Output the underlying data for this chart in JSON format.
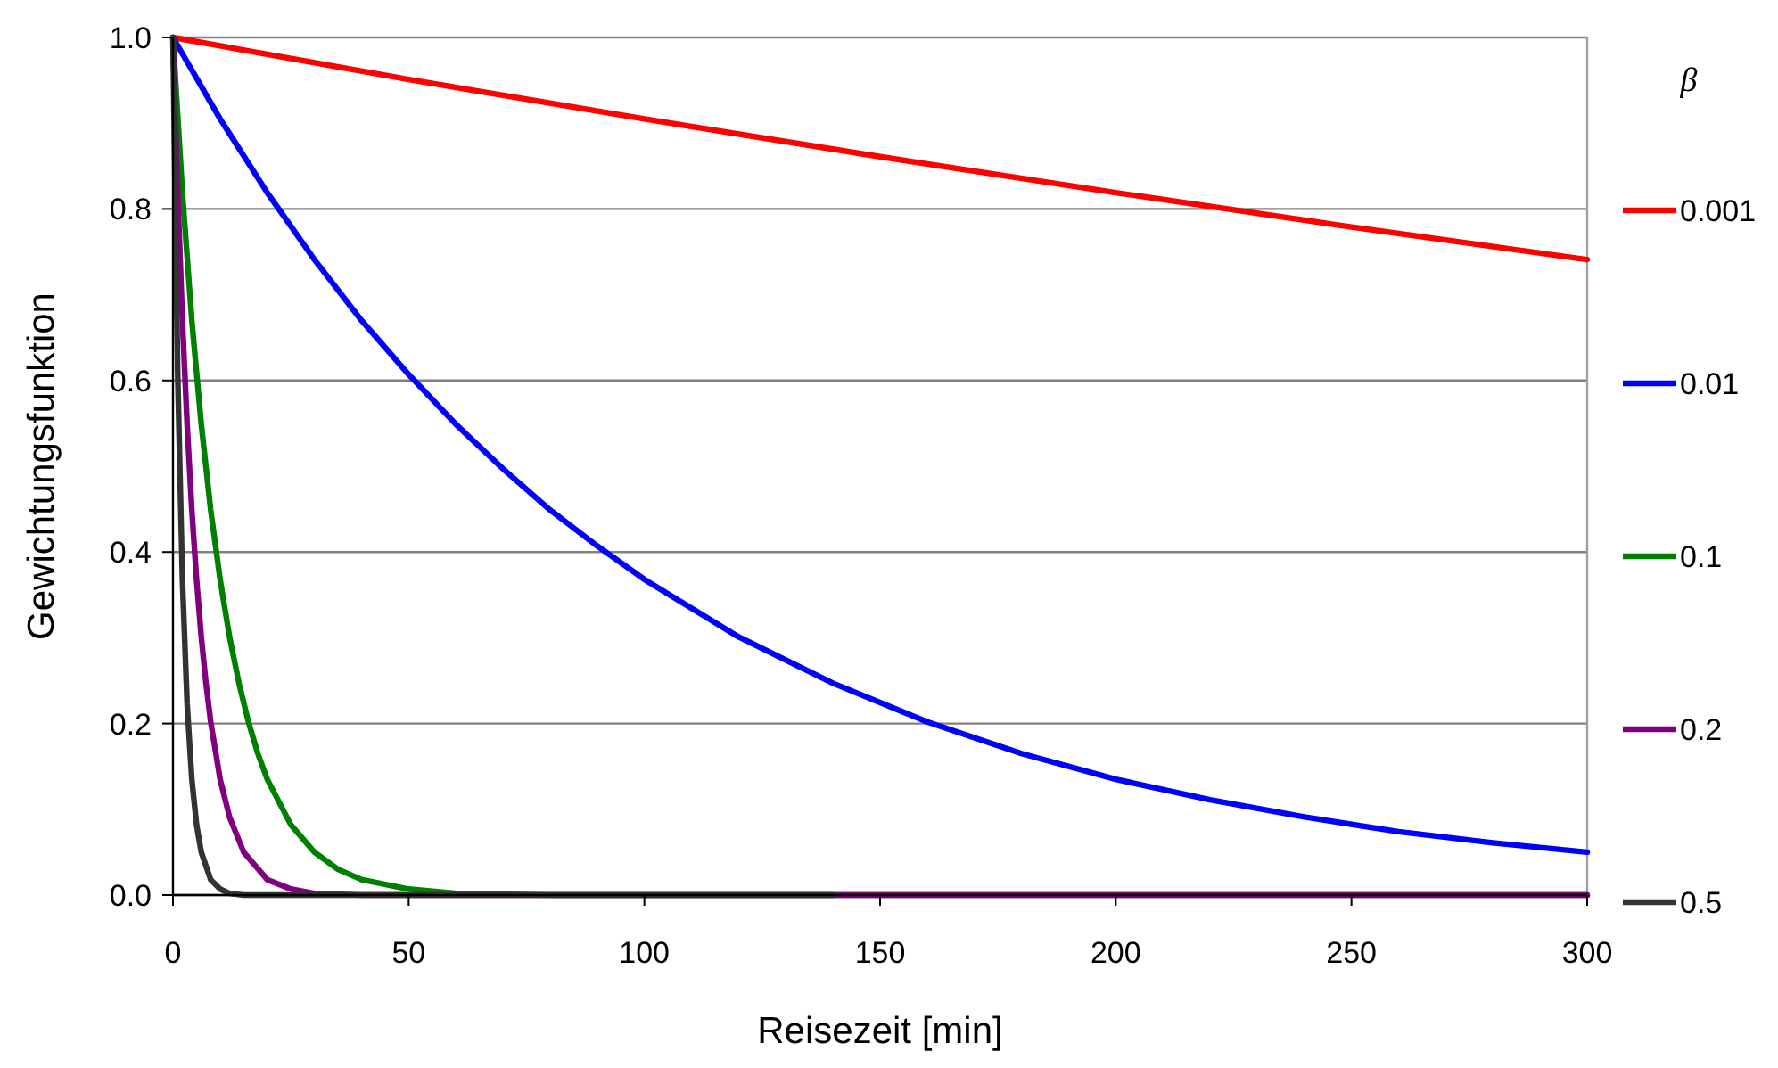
{
  "chart_data": {
    "type": "line",
    "xlabel": "Reisezeit [min]",
    "ylabel": "Gewichtungsfunktion",
    "legend_title": "β",
    "legend": "right",
    "grid": "y",
    "line_style": "solid",
    "marker": "none",
    "xlim": [
      0,
      300
    ],
    "xticks": [
      0,
      50,
      100,
      150,
      200,
      250,
      300
    ],
    "ylim": [
      0,
      1
    ],
    "yticks": [
      {
        "value": 0,
        "label": "0.0"
      },
      {
        "value": 0.2,
        "label": "0.2"
      },
      {
        "value": 0.4,
        "label": "0.4"
      },
      {
        "value": 0.6,
        "label": "0.6"
      },
      {
        "value": 0.8,
        "label": "0.8"
      },
      {
        "value": 1,
        "label": "1.0"
      }
    ],
    "series": [
      {
        "name": "0.001",
        "color": "#ff0000",
        "x": [
          0,
          50,
          100,
          150,
          200,
          250,
          300
        ],
        "values": [
          1,
          0.951,
          0.905,
          0.861,
          0.819,
          0.779,
          0.741
        ]
      },
      {
        "name": "0.01",
        "color": "#0000ff",
        "x": [
          0,
          10,
          20,
          30,
          40,
          50,
          60,
          70,
          80,
          90,
          100,
          120,
          140,
          160,
          180,
          200,
          220,
          240,
          260,
          280,
          300
        ],
        "values": [
          1,
          0.905,
          0.819,
          0.741,
          0.67,
          0.607,
          0.549,
          0.497,
          0.449,
          0.407,
          0.368,
          0.301,
          0.247,
          0.202,
          0.165,
          0.135,
          0.111,
          0.091,
          0.074,
          0.061,
          0.05
        ]
      },
      {
        "name": "0.1",
        "color": "#008000",
        "x": [
          0,
          2,
          4,
          6,
          8,
          10,
          12,
          14,
          16,
          18,
          20,
          25,
          30,
          35,
          40,
          50,
          60,
          80,
          300
        ],
        "values": [
          1,
          0.819,
          0.67,
          0.549,
          0.449,
          0.368,
          0.301,
          0.247,
          0.202,
          0.165,
          0.135,
          0.082,
          0.05,
          0.03,
          0.018,
          0.007,
          0.002,
          0,
          0
        ]
      },
      {
        "name": "0.2",
        "color": "#800080",
        "x": [
          0,
          1,
          2,
          3,
          4,
          5,
          6,
          7,
          8,
          10,
          12,
          15,
          20,
          25,
          30,
          40,
          300
        ],
        "values": [
          1,
          0.819,
          0.67,
          0.549,
          0.449,
          0.368,
          0.301,
          0.247,
          0.202,
          0.135,
          0.091,
          0.05,
          0.018,
          0.007,
          0.002,
          0,
          0
        ]
      },
      {
        "name": "0.5",
        "color": "#333333",
        "x": [
          0,
          1,
          2,
          3,
          4,
          5,
          6,
          8,
          10,
          12,
          15,
          140
        ],
        "values": [
          1,
          0.607,
          0.368,
          0.223,
          0.135,
          0.082,
          0.05,
          0.018,
          0.007,
          0.002,
          0,
          0
        ]
      }
    ]
  }
}
